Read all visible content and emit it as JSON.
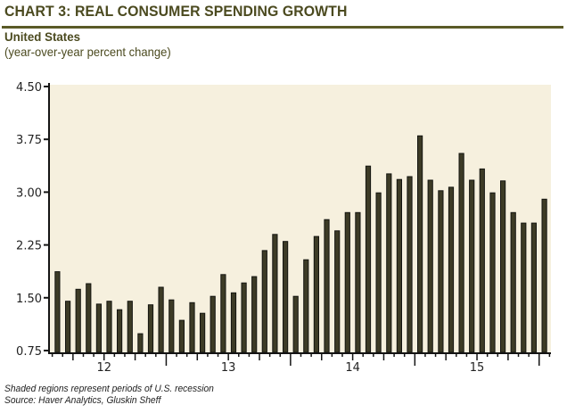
{
  "header": {
    "title": "CHART 3: REAL CONSUMER SPENDING GROWTH",
    "subtitle": "United States",
    "unit_note": "(year-over-year percent change)"
  },
  "footer": {
    "note": "Shaded regions represent periods of U.S. recession",
    "source": "Source: Haver Analytics, Gluskin Sheff"
  },
  "colors": {
    "title": "#4b4a1f",
    "rule": "#5a5a26",
    "plot_background": "#f6f0de",
    "bar_fill": "#3d3b26",
    "bar_outline": "#141410",
    "axis": "#141414"
  },
  "chart_data": {
    "type": "bar",
    "title": "CHART 3: REAL CONSUMER SPENDING GROWTH",
    "subtitle": "United States",
    "ylabel": "(year-over-year percent change)",
    "xlabel": "",
    "frequency": "monthly",
    "ylim": [
      0.75,
      4.5
    ],
    "yticks": [
      "0.75",
      "1.50",
      "2.25",
      "3.00",
      "3.75",
      "4.50"
    ],
    "ytick_values": [
      0.75,
      1.5,
      2.25,
      3.0,
      3.75,
      4.5
    ],
    "xtick_labels": [
      "12",
      "13",
      "14",
      "15"
    ],
    "x_start_month_index": 1,
    "x_span_months": 49,
    "year_start_index": [
      0,
      12,
      24,
      36,
      48
    ],
    "grid": false,
    "legend": "none",
    "series": [
      {
        "name": "Real consumer spending growth (y/y %)",
        "values": [
          1.87,
          1.45,
          1.62,
          1.7,
          1.41,
          1.45,
          1.33,
          1.45,
          0.99,
          1.4,
          1.65,
          1.47,
          1.18,
          1.43,
          1.28,
          1.52,
          1.83,
          1.57,
          1.71,
          1.8,
          2.17,
          2.4,
          2.3,
          1.52,
          2.04,
          2.37,
          2.61,
          2.45,
          2.71,
          2.71,
          3.37,
          2.99,
          3.26,
          3.18,
          3.22,
          3.8,
          3.17,
          3.02,
          3.07,
          3.55,
          3.17,
          3.33,
          2.99,
          3.16,
          2.71,
          2.56,
          2.56,
          2.9
        ]
      }
    ]
  }
}
